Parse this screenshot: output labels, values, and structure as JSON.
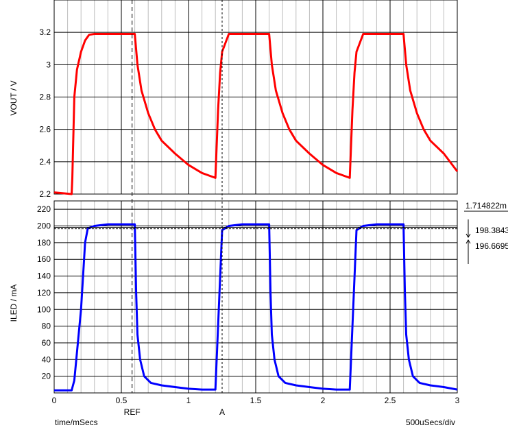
{
  "chart_data": [
    {
      "type": "line",
      "ylabel": "VOUT / V",
      "ylim": [
        2.2,
        3.4
      ],
      "yticks": [
        "2.2",
        "2.4",
        "2.6",
        "2.8",
        "3",
        "3.2"
      ],
      "xlim": [
        0,
        3
      ],
      "grid": true,
      "series": [
        {
          "color": "#ff0000",
          "x": [
            0,
            0.13,
            0.135,
            0.15,
            0.17,
            0.2,
            0.23,
            0.26,
            0.3,
            0.4,
            0.5,
            0.6,
            0.62,
            0.65,
            0.7,
            0.75,
            0.8,
            0.9,
            1.0,
            1.1,
            1.2,
            1.22,
            1.235,
            1.25,
            1.3,
            1.4,
            1.6,
            1.62,
            1.65,
            1.7,
            1.75,
            1.8,
            1.9,
            2.0,
            2.1,
            2.2,
            2.22,
            2.235,
            2.25,
            2.3,
            2.4,
            2.6,
            2.62,
            2.65,
            2.7,
            2.75,
            2.8,
            2.9,
            3.0
          ],
          "y": [
            2.21,
            2.2,
            2.3,
            2.8,
            2.97,
            3.08,
            3.15,
            3.185,
            3.19,
            3.19,
            3.19,
            3.19,
            3.0,
            2.84,
            2.7,
            2.6,
            2.53,
            2.45,
            2.38,
            2.33,
            2.3,
            2.72,
            2.95,
            3.08,
            3.19,
            3.19,
            3.19,
            3.0,
            2.84,
            2.7,
            2.6,
            2.53,
            2.45,
            2.38,
            2.33,
            2.3,
            2.72,
            2.95,
            3.08,
            3.19,
            3.19,
            3.19,
            3.0,
            2.84,
            2.7,
            2.6,
            2.53,
            2.45,
            2.34
          ]
        }
      ]
    },
    {
      "type": "line",
      "xlabel": "time/mSecs",
      "ylabel": "ILED / mA",
      "ylim": [
        0,
        230
      ],
      "yticks": [
        "20",
        "40",
        "60",
        "80",
        "100",
        "120",
        "140",
        "160",
        "180",
        "200",
        "220"
      ],
      "xlim": [
        0,
        3
      ],
      "xticks": [
        "0",
        "0.5",
        "1",
        "1.5",
        "2",
        "2.5",
        "3"
      ],
      "grid": true,
      "series": [
        {
          "color": "#0000ff",
          "x": [
            0,
            0.13,
            0.15,
            0.2,
            0.23,
            0.25,
            0.3,
            0.4,
            0.5,
            0.6,
            0.61,
            0.62,
            0.64,
            0.67,
            0.72,
            0.8,
            0.9,
            1.0,
            1.1,
            1.2,
            1.22,
            1.25,
            1.3,
            1.4,
            1.5,
            1.6,
            1.61,
            1.62,
            1.64,
            1.67,
            1.72,
            1.8,
            1.9,
            2.0,
            2.1,
            2.2,
            2.22,
            2.25,
            2.3,
            2.4,
            2.5,
            2.6,
            2.61,
            2.62,
            2.64,
            2.67,
            2.72,
            2.8,
            2.9,
            3.0
          ],
          "y": [
            3,
            3,
            15,
            100,
            180,
            197,
            200,
            202,
            202,
            202,
            120,
            70,
            40,
            20,
            12,
            9,
            7,
            5,
            4,
            4,
            80,
            195,
            200,
            202,
            202,
            202,
            120,
            70,
            40,
            20,
            12,
            9,
            7,
            5,
            4,
            4,
            80,
            195,
            200,
            202,
            202,
            202,
            120,
            70,
            40,
            20,
            12,
            9,
            7,
            4
          ]
        }
      ]
    }
  ],
  "cursors": [
    {
      "label": "REF",
      "x": 0.58
    },
    {
      "label": "A",
      "x": 1.25
    }
  ],
  "annotations": {
    "delta": "1.714822m",
    "upper": "198.3843",
    "lower": "196.6695",
    "upper_value": 198.3843,
    "lower_value": 196.6695
  },
  "timebase": "500uSecs/div"
}
